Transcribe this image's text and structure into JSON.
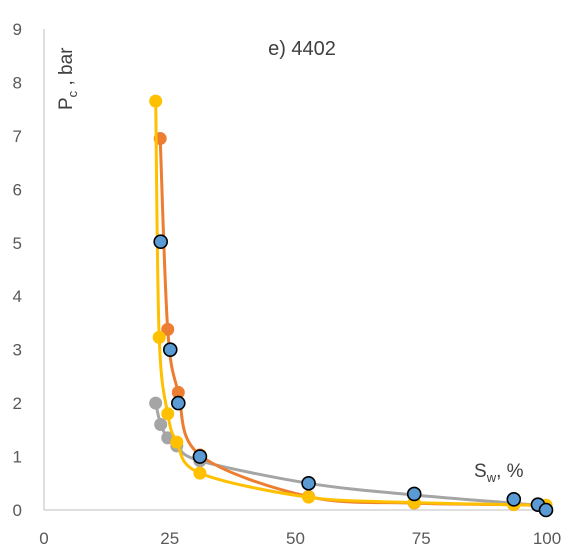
{
  "chart_data": {
    "type": "scatter",
    "title": "e) 4402",
    "xlabel": {
      "main": "S",
      "sub": "w",
      "suffix": ", %"
    },
    "ylabel": {
      "main": "P",
      "sub": "c",
      "suffix": " , bar"
    },
    "xlim": [
      0,
      100
    ],
    "ylim": [
      0,
      9
    ],
    "x_ticks": [
      "0",
      "25",
      "50",
      "75",
      "100"
    ],
    "y_ticks": [
      "0",
      "1",
      "2",
      "3",
      "4",
      "5",
      "6",
      "7",
      "8",
      "9"
    ],
    "grid": false,
    "legend": "none",
    "series": [
      {
        "color": "#A5A5A5",
        "style": "smooth-line-markers",
        "points": [
          [
            22.2,
            2.0
          ],
          [
            23.2,
            1.6
          ],
          [
            24.6,
            1.35
          ],
          [
            26.4,
            1.2
          ],
          [
            31.0,
            0.92
          ],
          [
            52.6,
            0.5
          ],
          [
            73.6,
            0.28
          ],
          [
            98.2,
            0.09
          ],
          [
            99.8,
            0.05
          ]
        ]
      },
      {
        "color": "#ED7D31",
        "style": "smooth-line-markers",
        "points": [
          [
            23.1,
            6.95
          ],
          [
            24.6,
            3.38
          ],
          [
            26.7,
            2.2
          ],
          [
            31.0,
            1.03
          ],
          [
            52.6,
            0.25
          ],
          [
            73.6,
            0.13
          ],
          [
            93.4,
            0.1
          ],
          [
            99.8,
            0.08
          ]
        ]
      },
      {
        "color": "#FFC000",
        "style": "smooth-line-markers",
        "points": [
          [
            22.2,
            7.65
          ],
          [
            22.9,
            3.23
          ],
          [
            24.6,
            1.8
          ],
          [
            26.4,
            1.27
          ],
          [
            31.0,
            0.69
          ],
          [
            52.6,
            0.24
          ],
          [
            73.6,
            0.14
          ],
          [
            93.4,
            0.1
          ],
          [
            99.8,
            0.09
          ]
        ]
      },
      {
        "color": "#5B9BD5",
        "style": "markers-only",
        "points": [
          [
            23.2,
            5.02
          ],
          [
            25.1,
            3.0
          ],
          [
            26.7,
            2.0
          ],
          [
            31.0,
            1.0
          ],
          [
            52.6,
            0.5
          ],
          [
            73.6,
            0.3
          ],
          [
            93.4,
            0.2
          ],
          [
            98.2,
            0.1
          ],
          [
            99.8,
            0.0
          ]
        ]
      }
    ]
  }
}
